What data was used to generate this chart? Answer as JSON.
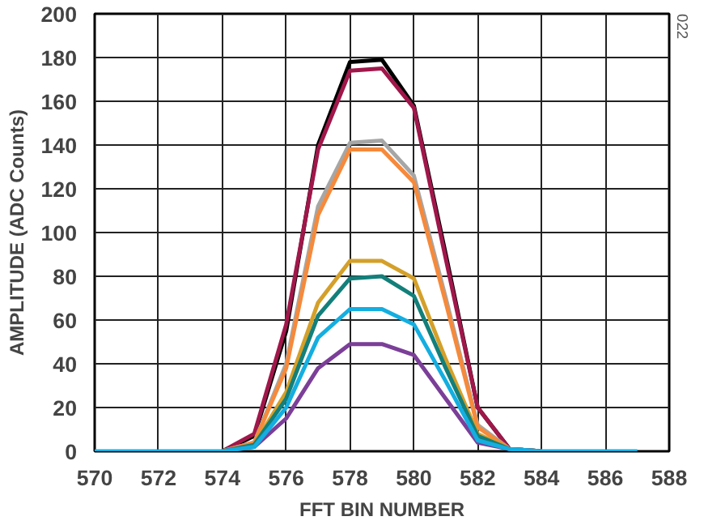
{
  "chart_data": {
    "type": "line",
    "xlabel": "FFT BIN NUMBER",
    "ylabel": "AMPLITUDE (ADC Counts)",
    "annotations": [
      "022"
    ],
    "x": [
      570,
      571,
      572,
      573,
      574,
      575,
      576,
      577,
      578,
      579,
      580,
      581,
      582,
      583,
      584,
      585,
      586,
      587
    ],
    "series": [
      {
        "color": "#000000",
        "values": [
          null,
          null,
          null,
          null,
          0,
          7,
          55,
          140,
          178,
          179,
          158,
          90,
          20,
          1,
          0,
          null,
          null,
          null
        ]
      },
      {
        "color": "#a0174a",
        "values": [
          null,
          null,
          null,
          null,
          0,
          8,
          58,
          138,
          174,
          175,
          157,
          88,
          20,
          1,
          0,
          null,
          null,
          null
        ]
      },
      {
        "color": "#a6a6a6",
        "values": [
          null,
          null,
          null,
          null,
          0,
          4,
          40,
          112,
          141,
          142,
          126,
          70,
          12,
          1,
          0,
          null,
          null,
          null
        ]
      },
      {
        "color": "#f58a3c",
        "values": [
          null,
          null,
          null,
          null,
          0,
          4,
          38,
          108,
          138,
          138,
          123,
          68,
          11,
          1,
          0,
          null,
          null,
          null
        ]
      },
      {
        "color": "#d4a02a",
        "values": [
          null,
          null,
          null,
          null,
          0,
          3,
          27,
          68,
          87,
          87,
          79,
          42,
          8,
          1,
          0,
          null,
          null,
          null
        ]
      },
      {
        "color": "#137f7a",
        "values": [
          null,
          null,
          null,
          null,
          0,
          3,
          24,
          62,
          79,
          80,
          71,
          38,
          7,
          1,
          0,
          null,
          null,
          null
        ]
      },
      {
        "color": "#7b3f98",
        "values": [
          null,
          null,
          null,
          null,
          0,
          2,
          15,
          38,
          49,
          49,
          44,
          24,
          4,
          1,
          0,
          null,
          null,
          null
        ]
      },
      {
        "color": "#14aee0",
        "values": [
          0,
          0,
          0,
          0,
          0,
          2,
          20,
          52,
          65,
          65,
          58,
          32,
          5,
          1,
          0,
          0,
          0,
          0
        ]
      }
    ],
    "xlim": [
      570,
      588
    ],
    "xticks": [
      570,
      572,
      574,
      576,
      578,
      580,
      582,
      584,
      586,
      588
    ],
    "ylim": [
      0,
      200
    ],
    "yticks": [
      0,
      20,
      40,
      60,
      80,
      100,
      120,
      140,
      160,
      180,
      200
    ],
    "grid": true
  }
}
